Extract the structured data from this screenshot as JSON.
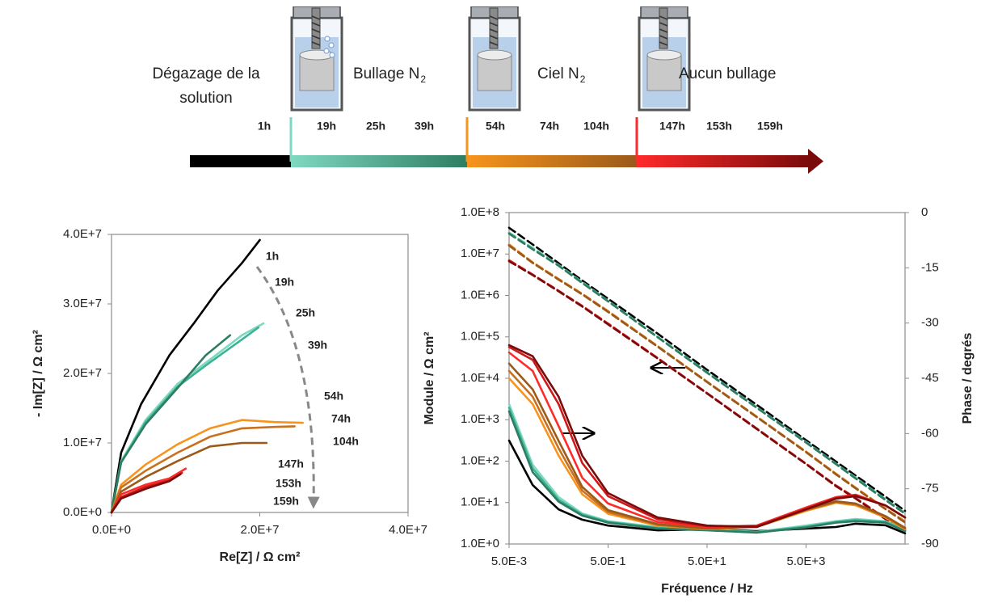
{
  "timeline": {
    "stages": [
      {
        "label": [
          "Dégazage de la",
          "solution"
        ],
        "hours": [
          {
            "label": "1h",
            "color": "#000000"
          }
        ]
      },
      {
        "label": [
          "Bullage N"
        ],
        "sub": "2",
        "hours": [
          {
            "label": "19h",
            "color": "#7fd8c0"
          },
          {
            "label": "25h",
            "color": "#3cb394"
          },
          {
            "label": "39h",
            "color": "#2e7d62"
          }
        ]
      },
      {
        "label": [
          "Ciel N"
        ],
        "sub": "2",
        "hours": [
          {
            "label": "54h",
            "color": "#f7941d"
          },
          {
            "label": "74h",
            "color": "#c8701e"
          },
          {
            "label": "104h",
            "color": "#9b5a1a"
          }
        ]
      },
      {
        "label": [
          "Aucun bullage"
        ],
        "hours": [
          {
            "label": "147h",
            "color": "#ff2a2a"
          },
          {
            "label": "153h",
            "color": "#cc1a1a"
          },
          {
            "label": "159h",
            "color": "#7b0b0b"
          }
        ]
      }
    ]
  },
  "chart_data": [
    {
      "type": "line",
      "xlabel": "Re[Z] / Ω cm²",
      "ylabel": "- Im[Z] / Ω cm²",
      "xlim": [
        0,
        40000000
      ],
      "xticks": [
        {
          "value": 0,
          "label": "0.0E+0"
        },
        {
          "value": 20000000,
          "label": "2.0E+7"
        },
        {
          "value": 40000000,
          "label": "4.0E+7"
        }
      ],
      "ylim": [
        0,
        40000000
      ],
      "yticks": [
        {
          "value": 0,
          "label": "0.0E+0"
        },
        {
          "value": 10000000,
          "label": "1.0E+7"
        },
        {
          "value": 20000000,
          "label": "2.0E+7"
        },
        {
          "value": 30000000,
          "label": "3.0E+7"
        },
        {
          "value": 40000000,
          "label": "4.0E+7"
        }
      ],
      "series": [
        {
          "name": "1h",
          "color": "#000000",
          "x": [
            0,
            1300000,
            4000000,
            7800000,
            11100000,
            14300000,
            17600000,
            20000000
          ],
          "values": [
            0,
            8600000,
            15600000,
            22600000,
            27200000,
            31900000,
            35900000,
            39200000
          ]
        },
        {
          "name": "19h",
          "color": "#7fd8c0",
          "x": [
            0,
            1300000,
            4600000,
            8900000,
            13300000,
            17600000,
            20500000
          ],
          "values": [
            0,
            7400000,
            13300000,
            18500000,
            22000000,
            25500000,
            27200000
          ]
        },
        {
          "name": "25h",
          "color": "#3cb394",
          "x": [
            0,
            1300000,
            4600000,
            8900000,
            13300000,
            17600000,
            19800000
          ],
          "values": [
            0,
            7200000,
            13000000,
            18100000,
            21600000,
            24900000,
            26600000
          ]
        },
        {
          "name": "39h",
          "color": "#2e7d62",
          "x": [
            0,
            1300000,
            4600000,
            8900000,
            12700000,
            16000000
          ],
          "values": [
            0,
            7200000,
            12700000,
            17900000,
            22600000,
            25500000
          ]
        },
        {
          "name": "54h",
          "color": "#f7941d",
          "x": [
            0,
            1300000,
            4600000,
            8900000,
            13300000,
            17600000,
            22000000,
            25800000
          ],
          "values": [
            0,
            4000000,
            6900000,
            9800000,
            12100000,
            13300000,
            13000000,
            12900000
          ]
        },
        {
          "name": "74h",
          "color": "#c8701e",
          "x": [
            0,
            1300000,
            4600000,
            8900000,
            13300000,
            17600000,
            22000000,
            24700000
          ],
          "values": [
            0,
            3600000,
            6000000,
            8600000,
            10900000,
            12100000,
            12300000,
            12400000
          ]
        },
        {
          "name": "104h",
          "color": "#9b5a1a",
          "x": [
            0,
            1300000,
            4600000,
            8900000,
            13300000,
            17600000,
            20900000
          ],
          "values": [
            0,
            3000000,
            5100000,
            7400000,
            9500000,
            10000000,
            10000000
          ]
        },
        {
          "name": "147h",
          "color": "#ff2a2a",
          "x": [
            0,
            1300000,
            4600000,
            7800000,
            10000000
          ],
          "values": [
            0,
            2600000,
            4000000,
            4900000,
            6300000
          ]
        },
        {
          "name": "153h",
          "color": "#cc1a1a",
          "x": [
            0,
            1300000,
            4600000,
            7800000,
            9500000
          ],
          "values": [
            0,
            2200000,
            3700000,
            4600000,
            5700000
          ]
        },
        {
          "name": "159h",
          "color": "#7b0b0b",
          "x": [
            0,
            1300000,
            4600000,
            7800000,
            9300000
          ],
          "values": [
            0,
            2000000,
            3400000,
            4500000,
            5500000
          ]
        }
      ]
    },
    {
      "type": "line",
      "xlabel": "Fréquence / Hz",
      "ylabel": "Module / Ω cm²",
      "y2label": "Phase / degrés",
      "xscale": "log",
      "yscale": "log",
      "xlim": [
        0.005,
        500000
      ],
      "xticks": [
        {
          "value": 0.005,
          "label": "5.0E-3"
        },
        {
          "value": 0.5,
          "label": "5.0E-1"
        },
        {
          "value": 50,
          "label": "5.0E+1"
        },
        {
          "value": 5000,
          "label": "5.0E+3"
        }
      ],
      "ylim": [
        1,
        100000000
      ],
      "yticks": [
        {
          "value": 1,
          "label": "1.0E+0"
        },
        {
          "value": 10,
          "label": "1.0E+1"
        },
        {
          "value": 100,
          "label": "1.0E+2"
        },
        {
          "value": 1000,
          "label": "1.0E+3"
        },
        {
          "value": 10000,
          "label": "1.0E+4"
        },
        {
          "value": 100000,
          "label": "1.0E+5"
        },
        {
          "value": 1000000,
          "label": "1.0E+6"
        },
        {
          "value": 10000000,
          "label": "1.0E+7"
        },
        {
          "value": 100000000,
          "label": "1.0E+8"
        }
      ],
      "y2lim": [
        -90,
        0
      ],
      "y2ticks": [
        0,
        -15,
        -30,
        -45,
        -60,
        -75,
        -90
      ],
      "x": [
        0.005,
        0.015,
        0.05,
        0.15,
        0.5,
        5,
        50,
        500,
        5000,
        20000,
        50000,
        200000,
        500000
      ],
      "series": [
        {
          "color": "#000000",
          "dash": true,
          "values": [
            43000000,
            17000000,
            6000000,
            2300000,
            830000,
            120000,
            16000,
            2300,
            320,
            98,
            45,
            14,
            6.3
          ]
        },
        {
          "color": "#7fd8c0",
          "dash": true,
          "values": [
            33000000,
            14000000,
            5400000,
            2100000,
            740000,
            100000,
            14000,
            2000,
            290,
            87,
            40,
            12,
            5.6
          ]
        },
        {
          "color": "#3cb394",
          "dash": true,
          "values": [
            32000000,
            13500000,
            5300000,
            2050000,
            730000,
            99000,
            13800,
            1980,
            285,
            86,
            39,
            12,
            5.5
          ]
        },
        {
          "color": "#2e7d62",
          "dash": true,
          "values": [
            31000000,
            13000000,
            5200000,
            2000000,
            720000,
            98000,
            13600,
            1950,
            280,
            85,
            38,
            11.5,
            5.4
          ]
        },
        {
          "color": "#f7941d",
          "dash": true,
          "values": [
            17000000,
            6300000,
            2500000,
            1100000,
            420000,
            60000,
            8300,
            1200,
            170,
            50,
            23,
            7.2,
            3.5
          ]
        },
        {
          "color": "#c8701e",
          "dash": true,
          "values": [
            16500000,
            6200000,
            2450000,
            1080000,
            410000,
            59000,
            8200,
            1180,
            168,
            49,
            22.5,
            7.1,
            3.4
          ]
        },
        {
          "color": "#9b5a1a",
          "dash": true,
          "values": [
            16000000,
            6100000,
            2400000,
            1060000,
            400000,
            58000,
            8100,
            1160,
            165,
            48,
            22,
            7,
            3.3
          ]
        },
        {
          "color": "#ff2a2a",
          "dash": true,
          "values": [
            7100000,
            3200000,
            1300000,
            560000,
            210000,
            31000,
            4400,
            620,
            87,
            26,
            13,
            4.2,
            2.2
          ]
        },
        {
          "color": "#cc1a1a",
          "dash": true,
          "values": [
            6900000,
            3150000,
            1280000,
            550000,
            205000,
            30500,
            4350,
            610,
            86,
            25.5,
            12.8,
            4.1,
            2.15
          ]
        },
        {
          "color": "#7b0b0b",
          "dash": true,
          "values": [
            6700000,
            3100000,
            1260000,
            540000,
            200000,
            30000,
            4300,
            600,
            85,
            25,
            12.5,
            4,
            2.1
          ]
        },
        {
          "color": "#000000",
          "axis": "y2",
          "values": [
            -61.9,
            -74,
            -80.6,
            -83.4,
            -85,
            -86.3,
            -86,
            -86.5,
            -85.8,
            -85.4,
            -84.5,
            -84.9,
            -87.1
          ]
        },
        {
          "color": "#7fd8c0",
          "axis": "y2",
          "values": [
            -52,
            -68.5,
            -77.3,
            -81.7,
            -83.8,
            -85.4,
            -86,
            -86.7,
            -85,
            -83.8,
            -83.2,
            -83.8,
            -86
          ]
        },
        {
          "color": "#3cb394",
          "axis": "y2",
          "values": [
            -53,
            -69.5,
            -78,
            -82,
            -84,
            -85.6,
            -86.2,
            -86.8,
            -85.3,
            -84,
            -83.5,
            -84,
            -86.2
          ]
        },
        {
          "color": "#2e7d62",
          "axis": "y2",
          "values": [
            -54,
            -70.5,
            -78.5,
            -82.3,
            -84.2,
            -85.8,
            -86.3,
            -86.9,
            -85.5,
            -84.2,
            -83.8,
            -84.2,
            -86.5
          ]
        },
        {
          "color": "#f7941d",
          "axis": "y2",
          "values": [
            -45,
            -52,
            -66,
            -76.5,
            -81.8,
            -85,
            -86,
            -85.4,
            -81,
            -78.8,
            -79.5,
            -82.8,
            -86
          ]
        },
        {
          "color": "#c8701e",
          "axis": "y2",
          "values": [
            -43,
            -50,
            -64,
            -75.5,
            -81.3,
            -84.8,
            -85.9,
            -85.3,
            -80.8,
            -78.6,
            -79.2,
            -82.6,
            -85.8
          ]
        },
        {
          "color": "#9b5a1a",
          "axis": "y2",
          "values": [
            -41,
            -48,
            -62,
            -74.5,
            -80.8,
            -84.6,
            -85.8,
            -85.2,
            -80.6,
            -78.4,
            -79,
            -82.4,
            -85.6
          ]
        },
        {
          "color": "#ff2a2a",
          "axis": "y2",
          "values": [
            -38,
            -43,
            -58,
            -72,
            -79,
            -84,
            -85.4,
            -85,
            -80.1,
            -77.3,
            -76.6,
            -79.5,
            -82.8
          ]
        },
        {
          "color": "#cc1a1a",
          "axis": "y2",
          "values": [
            -36.5,
            -40,
            -52,
            -68,
            -77,
            -83.3,
            -85.2,
            -85.2,
            -80.4,
            -77.5,
            -76.8,
            -79.5,
            -82.8
          ]
        },
        {
          "color": "#7b0b0b",
          "axis": "y2",
          "values": [
            -36,
            -39,
            -50,
            -66,
            -76.2,
            -82.8,
            -85,
            -85.4,
            -80.6,
            -77.7,
            -77,
            -79.5,
            -82.8
          ]
        }
      ]
    }
  ]
}
